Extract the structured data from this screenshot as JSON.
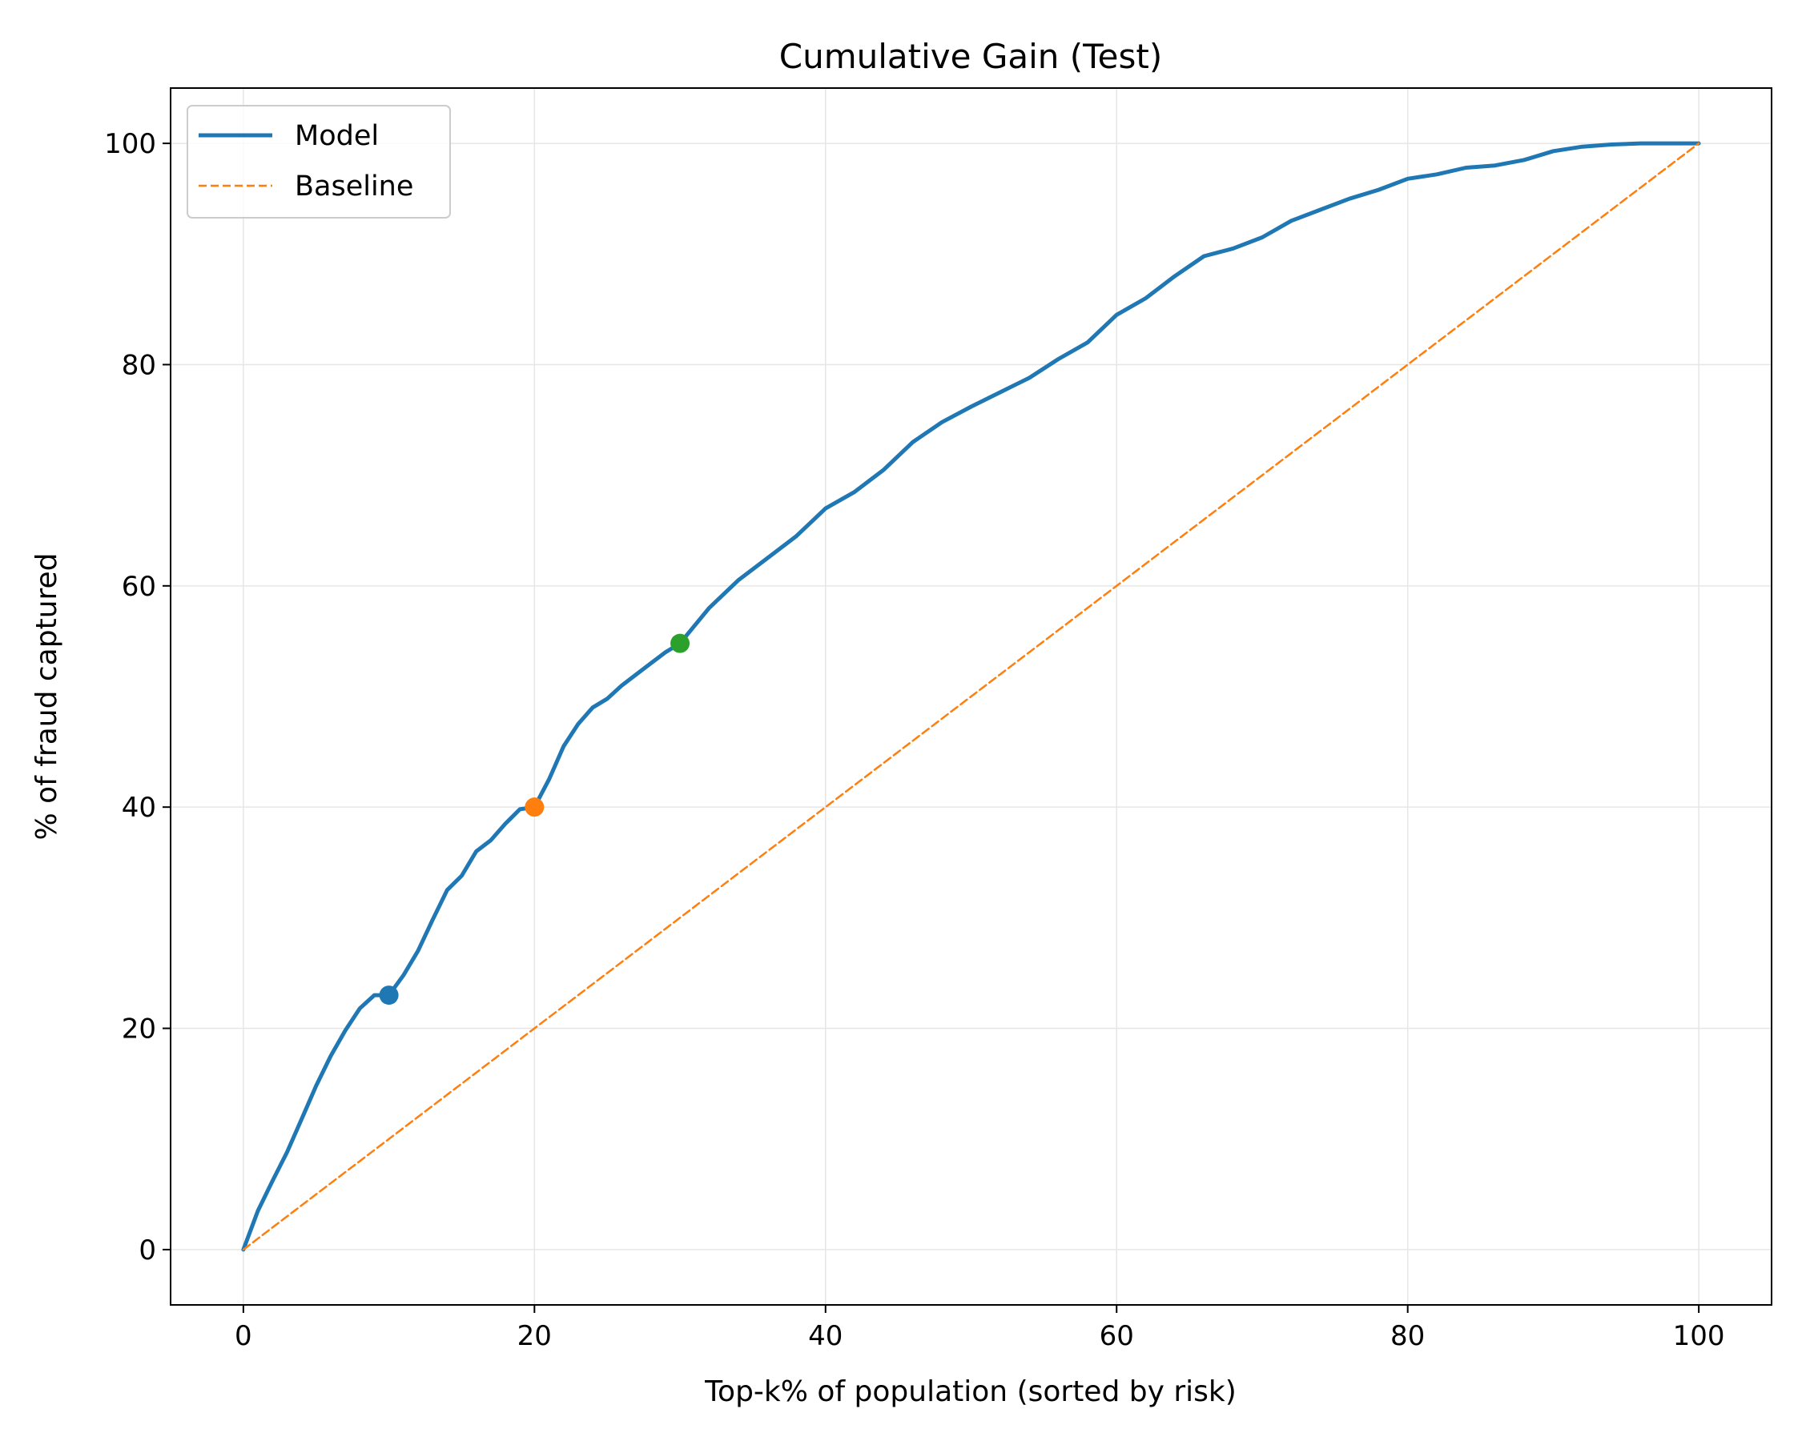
{
  "chart_data": {
    "type": "line",
    "title": "Cumulative Gain (Test)",
    "xlabel": "Top-k% of population (sorted by risk)",
    "ylabel": "% of fraud captured",
    "xlim": [
      -5,
      105
    ],
    "ylim": [
      -5,
      105
    ],
    "xticks": [
      0,
      20,
      40,
      60,
      80,
      100
    ],
    "yticks": [
      0,
      20,
      40,
      60,
      80,
      100
    ],
    "grid": true,
    "legend_position": "upper left",
    "series": [
      {
        "name": "Model",
        "color": "#1f77b4",
        "style": "solid",
        "x": [
          0,
          1,
          2,
          3,
          4,
          5,
          6,
          7,
          8,
          9,
          10,
          11,
          12,
          13,
          14,
          15,
          16,
          17,
          18,
          19,
          20,
          21,
          22,
          23,
          24,
          25,
          26,
          27,
          28,
          29,
          30,
          32,
          34,
          36,
          38,
          40,
          42,
          44,
          46,
          48,
          50,
          52,
          54,
          56,
          58,
          60,
          62,
          64,
          66,
          68,
          70,
          72,
          74,
          76,
          78,
          80,
          82,
          84,
          86,
          88,
          90,
          92,
          94,
          96,
          98,
          100
        ],
        "y": [
          0,
          3.5,
          6.2,
          8.8,
          11.8,
          14.8,
          17.5,
          19.8,
          21.8,
          23.0,
          23.0,
          24.8,
          27.0,
          29.8,
          32.5,
          33.8,
          36.0,
          37.0,
          38.5,
          39.8,
          40.0,
          42.5,
          45.5,
          47.5,
          49.0,
          49.8,
          51.0,
          52.0,
          53.0,
          54.0,
          54.8,
          58.0,
          60.5,
          62.5,
          64.5,
          67.0,
          68.5,
          70.5,
          73.0,
          74.8,
          76.2,
          77.5,
          78.8,
          80.5,
          82.0,
          84.5,
          86.0,
          88.0,
          89.8,
          90.5,
          91.5,
          93.0,
          94.0,
          95.0,
          95.8,
          96.8,
          97.2,
          97.8,
          98.0,
          98.5,
          99.3,
          99.7,
          99.9,
          100,
          100,
          100
        ]
      },
      {
        "name": "Baseline",
        "color": "#ff7f0e",
        "style": "dashed",
        "x": [
          0,
          100
        ],
        "y": [
          0,
          100
        ]
      }
    ],
    "markers": [
      {
        "x": 10,
        "y": 23.0,
        "color": "#1f77b4"
      },
      {
        "x": 20,
        "y": 40.0,
        "color": "#ff7f0e"
      },
      {
        "x": 30,
        "y": 54.8,
        "color": "#2ca02c"
      }
    ]
  }
}
